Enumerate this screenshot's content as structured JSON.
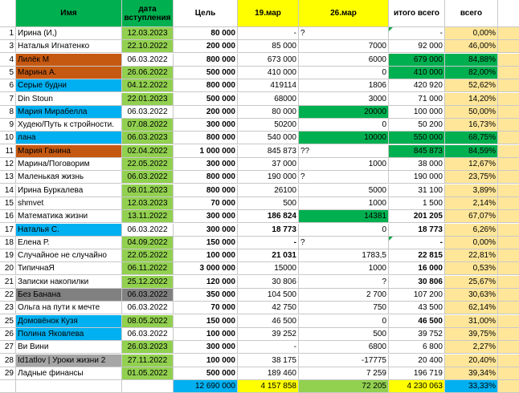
{
  "colors": {
    "green_bright": "#00b050",
    "green_light": "#92d050",
    "orange": "#c65911",
    "blue": "#00b0f0",
    "gray": "#a6a6a6",
    "darkgray": "#808080",
    "yellow": "#ffff00",
    "peach": "#ffe699",
    "header_green": "#00b050"
  },
  "headers": {
    "num": "",
    "name": "Имя",
    "date": "дата вступления",
    "goal": "Цель",
    "m19": "19.мар",
    "m26": "26.мар",
    "total": "итого всего",
    "pct": "всего"
  },
  "rows": [
    {
      "n": "1",
      "name": "Ирина (И,)",
      "date": "12.03.2023",
      "goal": "80 000",
      "m19": "-",
      "note19": "?",
      "m26": "",
      "total": "-",
      "pct": "0,00%"
    },
    {
      "n": "3",
      "name": "Наталья Игнатенко",
      "date": "22.10.2022",
      "goal": "200 000",
      "m19": "85 000",
      "note19": "",
      "m26": "7000",
      "total": "92 000",
      "pct": "46,00%"
    },
    {
      "n": "4",
      "name": "Лилёк М",
      "date": "06.03.2022",
      "goal": "800 000",
      "m19": "673 000",
      "note19": "",
      "m26": "6000",
      "total": "679 000",
      "pct": "84,88%"
    },
    {
      "n": "5",
      "name": "Марина А.",
      "date": "26.06.2022",
      "goal": "500 000",
      "m19": "410 000",
      "note19": "",
      "m26": "0",
      "total": "410 000",
      "pct": "82,00%"
    },
    {
      "n": "6",
      "name": "Серые будни",
      "date": "04.12.2022",
      "goal": "800 000",
      "m19": "419114",
      "note19": "",
      "m26": "1806",
      "total": "420 920",
      "pct": "52,62%"
    },
    {
      "n": "7",
      "name": "Din Stoun",
      "date": "22.01.2023",
      "goal": "500 000",
      "m19": "68000",
      "note19": "",
      "m26": "3000",
      "total": "71 000",
      "pct": "14,20%"
    },
    {
      "n": "8",
      "name": "Мария Мирабелла",
      "date": "06.03.2022",
      "goal": "200 000",
      "m19": "80 000",
      "note19": "",
      "m26": "20000",
      "total": "100 000",
      "pct": "50,00%"
    },
    {
      "n": "9",
      "name": "Худею/Путь к стройности.",
      "date": "07.08.2022",
      "goal": "300 000",
      "m19": "50200",
      "note19": "",
      "m26": "0",
      "total": "50 200",
      "pct": "16,73%"
    },
    {
      "n": "10",
      "name": "лана",
      "date": "06.03.2023",
      "goal": "800 000",
      "m19": "540 000",
      "note19": "",
      "m26": "10000",
      "total": "550 000",
      "pct": "68,75%"
    },
    {
      "n": "11",
      "name": "Мария Ганина",
      "date": "02.04.2022",
      "goal": "1 000 000",
      "m19": "845 873",
      "note19": "??",
      "m26": "",
      "total": "845 873",
      "pct": "84,59%"
    },
    {
      "n": "12",
      "name": "Марина/Поговорим",
      "date": "22.05.2022",
      "goal": "300 000",
      "m19": "37 000",
      "note19": "",
      "m26": "1000",
      "total": "38 000",
      "pct": "12,67%"
    },
    {
      "n": "13",
      "name": "Маленькая жизнь",
      "date": "06.03.2022",
      "goal": "800 000",
      "m19": "190 000",
      "note19": "?",
      "m26": "",
      "total": "190 000",
      "pct": "23,75%"
    },
    {
      "n": "14",
      "name": "Ирина Буркалева",
      "date": "08.01.2023",
      "goal": "800 000",
      "m19": "26100",
      "note19": "",
      "m26": "5000",
      "total": "31 100",
      "pct": "3,89%"
    },
    {
      "n": "15",
      "name": "shmvet",
      "date": "12.03.2023",
      "goal": "70 000",
      "m19": "500",
      "note19": "",
      "m26": "1000",
      "total": "1 500",
      "pct": "2,14%"
    },
    {
      "n": "16",
      "name": "Математика жизни",
      "date": "13.11.2022",
      "goal": "300 000",
      "m19": "186 824",
      "note19": "",
      "m26": "14381",
      "total": "201 205",
      "pct": "67,07%"
    },
    {
      "n": "17",
      "name": "Наталья С.",
      "date": "06.03.2022",
      "goal": "300 000",
      "m19": "18 773",
      "note19": "",
      "m26": "0",
      "total": "18 773",
      "pct": "6,26%"
    },
    {
      "n": "18",
      "name": "Елена Р.",
      "date": "04.09.2022",
      "goal": "150 000",
      "m19": "-",
      "note19": "?",
      "m26": "",
      "total": "-",
      "pct": "0,00%"
    },
    {
      "n": "19",
      "name": " Случайное не случайно",
      "date": "22.05.2022",
      "goal": "100 000",
      "m19": "21 031",
      "note19": "",
      "m26": "1783,5",
      "total": "22 815",
      "pct": "22,81%"
    },
    {
      "n": "20",
      "name": "ТипичнаЯ",
      "date": "06.11.2022",
      "goal": "3 000 000",
      "m19": "15000",
      "note19": "",
      "m26": "1000",
      "total": "16 000",
      "pct": "0,53%"
    },
    {
      "n": "21",
      "name": "Записки накопилки",
      "date": "25.12.2022",
      "goal": "120 000",
      "m19": "30 806",
      "note19": "",
      "m26": "?",
      "total": "30 806",
      "pct": "25,67%"
    },
    {
      "n": "22",
      "name": "Без Банана",
      "date": "06.03.2022",
      "goal": "350 000",
      "m19": "104 500",
      "note19": "",
      "m26": "2 700",
      "total": "107 200",
      "pct": "30,63%"
    },
    {
      "n": "23",
      "name": "Ольга на пути к мечте",
      "date": "06.03.2022",
      "goal": "70 000",
      "m19": "42 750",
      "note19": "",
      "m26": "750",
      "total": "43 500",
      "pct": "62,14%"
    },
    {
      "n": "25",
      "name": " Домовёнок Кузя",
      "date": "08.05.2022",
      "goal": "150 000",
      "m19": "46 500",
      "note19": "",
      "m26": "0",
      "total": "46 500",
      "pct": "31,00%"
    },
    {
      "n": "26",
      "name": "Полина Яковлева",
      "date": "06.03.2022",
      "goal": "100 000",
      "m19": "39 252",
      "note19": "",
      "m26": "500",
      "total": "39 752",
      "pct": "39,75%"
    },
    {
      "n": "27",
      "name": "Ви Вини",
      "date": "26.03.2023",
      "goal": "300 000",
      "m19": "-",
      "note19": "",
      "m26": "6800",
      "total": "6 800",
      "pct": "2,27%"
    },
    {
      "n": "28",
      "name": "Id1atlov  |  Уроки жизни 2",
      "date": "27.11.2022",
      "goal": "100 000",
      "m19": "38 175",
      "note19": "",
      "m26": "-17775",
      "total": "20 400",
      "pct": "20,40%"
    },
    {
      "n": "29",
      "name": "Ладные финансы",
      "date": "01.05.2022",
      "goal": "500 000",
      "m19": "189 460",
      "note19": "",
      "m26": "7 259",
      "total": "196 719",
      "pct": "39,34%"
    }
  ],
  "totals": {
    "goal": "12 690 000",
    "m19": "4 157 858",
    "m26": "72 205",
    "total": "4 230 063",
    "pct": "33,33%"
  }
}
